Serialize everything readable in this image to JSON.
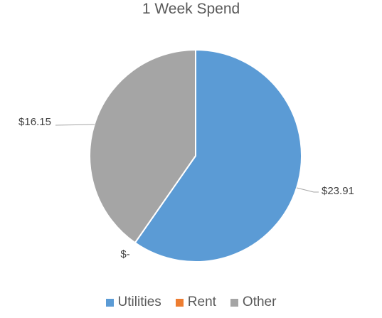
{
  "chart_data": {
    "type": "pie",
    "title": "1 Week Spend",
    "categories": [
      "Utilities",
      "Rent",
      "Other"
    ],
    "values": [
      23.91,
      0,
      16.15
    ],
    "data_labels": [
      "$23.91",
      "$-",
      "$16.15"
    ],
    "colors": [
      "#5b9bd5",
      "#ed7d31",
      "#a5a5a5"
    ],
    "legend_position": "bottom",
    "start_angle": "12 o'clock, clockwise"
  }
}
